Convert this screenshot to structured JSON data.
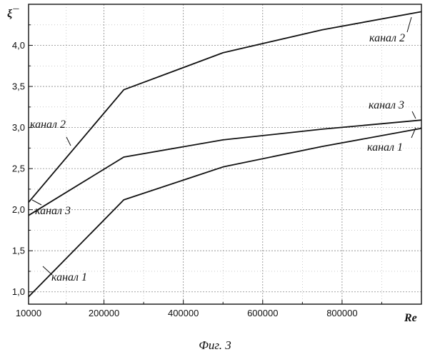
{
  "caption": "Фиг. 3",
  "chart_data": {
    "type": "line",
    "xlabel": "Re",
    "ylabel": "ξ¯",
    "xlim": [
      10000,
      1000000
    ],
    "ylim": [
      0.85,
      4.5
    ],
    "grid": true,
    "x_ticks": [
      {
        "value": 10000,
        "label": "10000"
      },
      {
        "value": 200000,
        "label": "200000"
      },
      {
        "value": 400000,
        "label": "400000"
      },
      {
        "value": 600000,
        "label": "600000"
      },
      {
        "value": 800000,
        "label": "800000"
      }
    ],
    "y_ticks": [
      {
        "value": 1.0,
        "label": "1,0"
      },
      {
        "value": 1.5,
        "label": "1,5"
      },
      {
        "value": 2.0,
        "label": "2,0"
      },
      {
        "value": 2.5,
        "label": "2,5"
      },
      {
        "value": 3.0,
        "label": "3,0"
      },
      {
        "value": 3.5,
        "label": "3,5"
      },
      {
        "value": 4.0,
        "label": "4,0"
      }
    ],
    "series": [
      {
        "name": "канал 1",
        "x": [
          10000,
          250000,
          500000,
          750000,
          1000000
        ],
        "y": [
          0.94,
          2.12,
          2.52,
          2.77,
          2.99
        ]
      },
      {
        "name": "канал 2",
        "x": [
          10000,
          250000,
          500000,
          750000,
          1000000
        ],
        "y": [
          2.09,
          3.46,
          3.91,
          4.19,
          4.41
        ]
      },
      {
        "name": "канал 3",
        "x": [
          10000,
          250000,
          500000,
          750000,
          1000000
        ],
        "y": [
          1.93,
          2.64,
          2.85,
          2.98,
          3.09
        ]
      }
    ],
    "annotations": [
      {
        "text": "канал 2",
        "series": 1,
        "anchor_x": 1000000,
        "anchor_y": 4.41
      },
      {
        "text": "канал 3",
        "series": 2,
        "anchor_x": 1000000,
        "anchor_y": 3.09
      },
      {
        "text": "канал 1",
        "series": 0,
        "anchor_x": 1000000,
        "anchor_y": 2.99
      },
      {
        "text": "канал 2",
        "series": 1,
        "anchor_x": 120000,
        "anchor_y": 2.75
      },
      {
        "text": "канал 3",
        "series": 2,
        "anchor_x": 10000,
        "anchor_y": 1.93
      },
      {
        "text": "канал 1",
        "series": 0,
        "anchor_x": 60000,
        "anchor_y": 1.19
      }
    ]
  }
}
